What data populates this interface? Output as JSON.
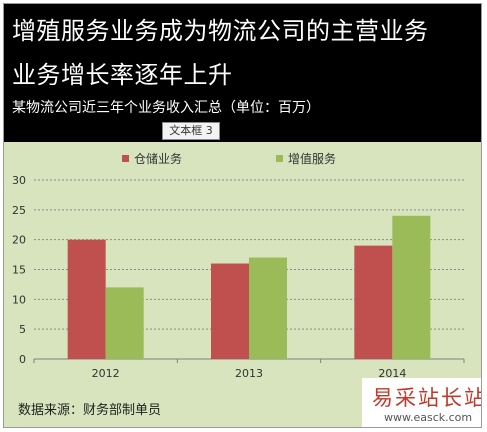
{
  "header": {
    "title_line1": "增殖服务业务成为物流公司的主营业务",
    "title_line2": "业务增长率逐年上升",
    "subtitle": "某物流公司近三年个业务收入汇总（单位：百万）"
  },
  "textbox_tag": "文本框 3",
  "source": "数据来源：财务部制单员",
  "watermark": {
    "text": "易采站长站",
    "url": "www.easck.com"
  },
  "colors": {
    "warehouse": "#c0504d",
    "value_added": "#9bbb59",
    "plot_bg": "#d7e4bd",
    "header_bg": "#000000"
  },
  "chart_data": {
    "type": "bar",
    "categories": [
      "2012",
      "2013",
      "2014"
    ],
    "series": [
      {
        "name": "仓储业务",
        "values": [
          20,
          16,
          19
        ]
      },
      {
        "name": "增值服务",
        "values": [
          12,
          17,
          24
        ]
      }
    ],
    "yticks": [
      "0",
      "5",
      "10",
      "15",
      "20",
      "25",
      "30"
    ],
    "ylim": [
      0,
      30
    ],
    "grid": true,
    "legend": "top-center"
  }
}
